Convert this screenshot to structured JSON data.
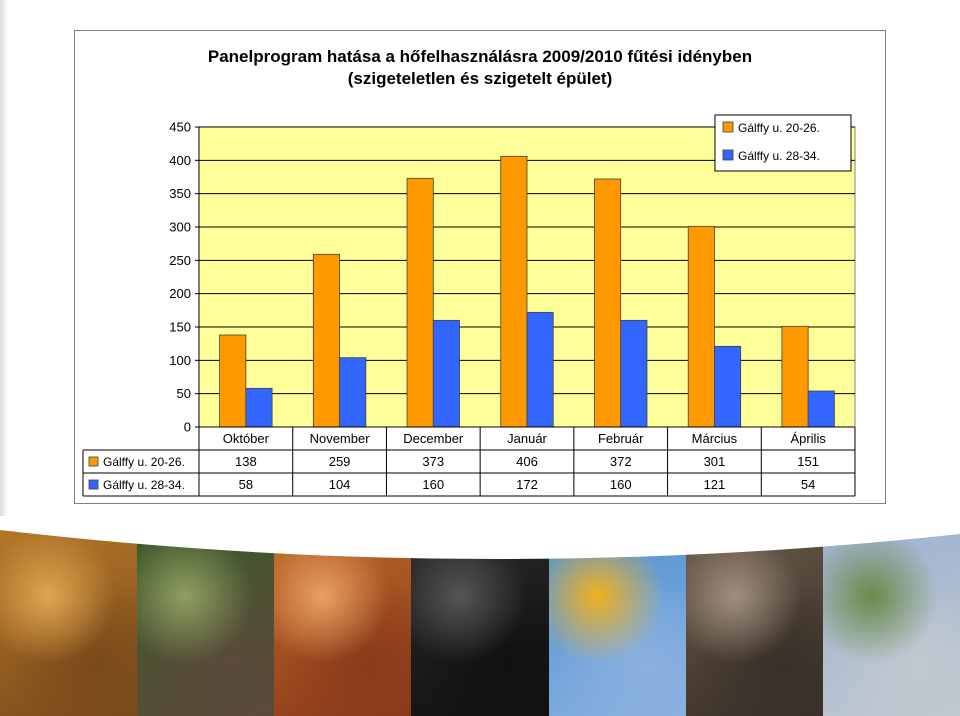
{
  "chart_data": {
    "type": "bar",
    "title": "Panelprogram hatása a hőfelhasználásra 2009/2010 fűtési idényben",
    "subtitle": "(szigeteletlen és szigetelt épület)",
    "categories": [
      "Október",
      "November",
      "December",
      "Január",
      "Február",
      "Március",
      "Április"
    ],
    "series": [
      {
        "name": "Gálffy u. 20-26.",
        "color": "#ff9900",
        "values": [
          138,
          259,
          373,
          406,
          372,
          301,
          151
        ]
      },
      {
        "name": "Gálffy u. 28-34.",
        "color": "#3366ff",
        "values": [
          58,
          104,
          160,
          172,
          160,
          121,
          54
        ]
      }
    ],
    "ylim": [
      0,
      450
    ],
    "yticks": [
      0,
      50,
      100,
      150,
      200,
      250,
      300,
      350,
      400,
      450
    ],
    "grid": true,
    "legend": "top-right",
    "plot_background": "#ffff99",
    "data_table": true
  },
  "colors": {
    "plot_background": "#ffff99",
    "gridline": "#000000"
  },
  "photo_strip": {
    "panels": [
      {
        "name": "castle-photo",
        "colors": [
          "#b87a2a",
          "#e0a550",
          "#7a4a1a"
        ]
      },
      {
        "name": "horses-photo",
        "colors": [
          "#3c5a2a",
          "#8fa060",
          "#5a4a3a"
        ]
      },
      {
        "name": "firewood-photo",
        "colors": [
          "#c06a2a",
          "#e8a060",
          "#8a3a1a"
        ]
      },
      {
        "name": "coal-photo",
        "colors": [
          "#2a2a2a",
          "#555555",
          "#111111"
        ]
      },
      {
        "name": "sunflower-photo",
        "colors": [
          "#4a90d0",
          "#f0b020",
          "#8ab0e0"
        ]
      },
      {
        "name": "boiler-room-photo",
        "colors": [
          "#6a5a4a",
          "#a09080",
          "#3a3028"
        ]
      },
      {
        "name": "city-photo",
        "colors": [
          "#9ab0d0",
          "#6a8a4a",
          "#c0c8d0"
        ]
      }
    ]
  }
}
